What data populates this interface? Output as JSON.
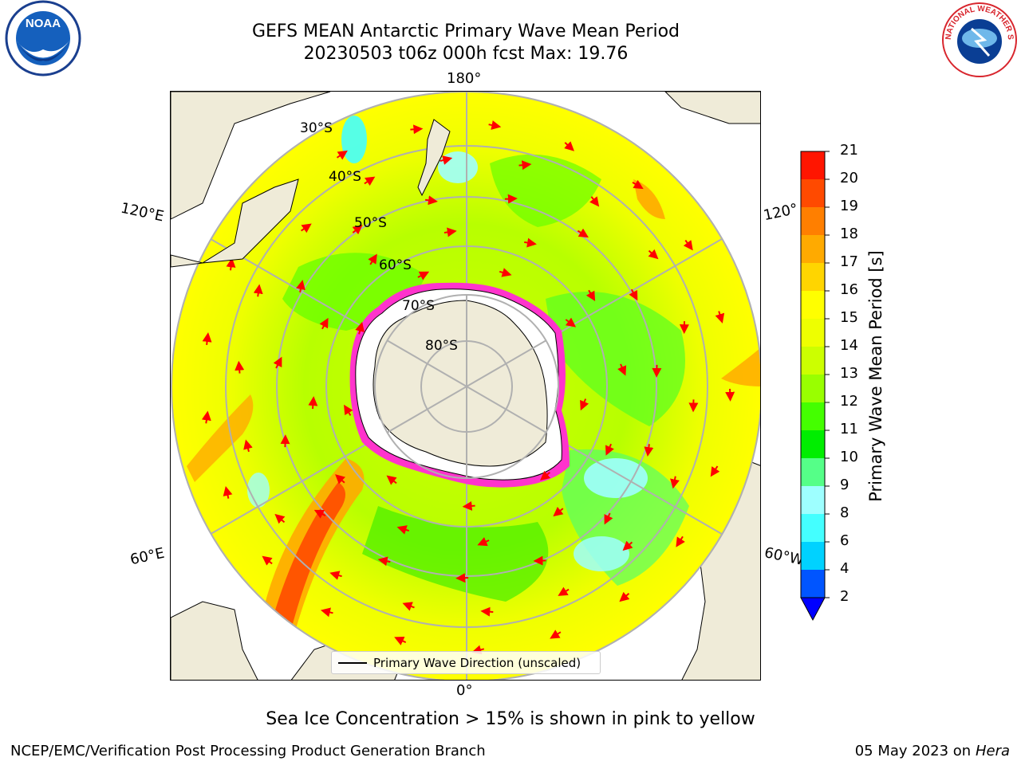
{
  "header": {
    "title_line1": "GEFS MEAN Antarctic Primary Wave Mean Period",
    "title_line2": "20230503 t06z 000h fcst   Max: 19.76"
  },
  "logos": {
    "left": {
      "name": "noaa-logo",
      "text": "NOAA"
    },
    "right": {
      "name": "nws-logo",
      "text": "NATIONAL WEATHER SERVICE"
    }
  },
  "map": {
    "projection": "south-polar-stereographic",
    "lon_labels": {
      "top": "180°",
      "bottom": "0°",
      "left_upper": "120°E",
      "left_lower": "60°E",
      "right_upper": "120°",
      "right_lower": "60°W"
    },
    "lat_labels": [
      "30°S",
      "40°S",
      "50°S",
      "60°S",
      "70°S",
      "80°S"
    ],
    "legend_label": "Primary Wave Direction (unscaled)",
    "colors": {
      "land": "#efebd8",
      "ice_edge": "#ff33cc",
      "ocean_base": "#ccff00",
      "arrow": "#ff0000"
    }
  },
  "colorbar": {
    "title": "Primary Wave Mean Period [s]",
    "ticks": [
      "2",
      "4",
      "6",
      "8",
      "9",
      "10",
      "11",
      "12",
      "13",
      "14",
      "15",
      "16",
      "17",
      "18",
      "19",
      "20",
      "21"
    ],
    "colors": [
      "#0055ff",
      "#00d2ff",
      "#44ffff",
      "#9effff",
      "#55ff88",
      "#00ee00",
      "#44ff00",
      "#99ff00",
      "#ccff00",
      "#eeff00",
      "#ffff00",
      "#ffd500",
      "#ffaa00",
      "#ff7f00",
      "#ff4a00",
      "#ff1500"
    ],
    "under_color": "#0000ff"
  },
  "footer": {
    "note": "Sea Ice Concentration > 15% is shown in pink to yellow",
    "credit": "NCEP/EMC/Verification Post Processing Product Generation Branch",
    "date": "05 May 2023 on",
    "machine": "Hera"
  }
}
